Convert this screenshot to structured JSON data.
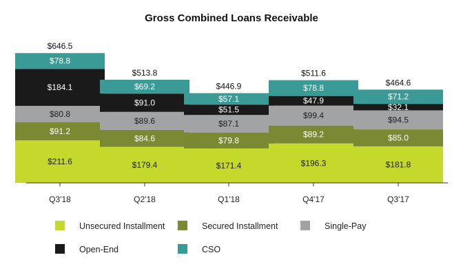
{
  "chart_data": {
    "type": "bar",
    "stacked": true,
    "title": "Gross Combined Loans Receivable",
    "xlabel": "",
    "ylabel": "",
    "categories": [
      "Q3'18",
      "Q2'18",
      "Q1'18",
      "Q4'17",
      "Q3'17"
    ],
    "ylim": [
      0,
      700
    ],
    "grid": false,
    "legend_position": "bottom",
    "series": [
      {
        "name": "Unsecured Installment",
        "color": "#c5d92d",
        "label_color": "#222222",
        "values": [
          211.6,
          179.4,
          171.4,
          196.3,
          181.8
        ],
        "labels": [
          "$211.6",
          "$179.4",
          "$171.4",
          "$196.3",
          "$181.8"
        ]
      },
      {
        "name": "Secured Installment",
        "color": "#7b8a32",
        "label_color": "#ffffff",
        "values": [
          91.2,
          84.6,
          79.8,
          89.2,
          85.0
        ],
        "labels": [
          "$91.2",
          "$84.6",
          "$79.8",
          "$89.2",
          "$85.0"
        ]
      },
      {
        "name": "Single-Pay",
        "color": "#a1a3a5",
        "label_color": "#222222",
        "values": [
          80.8,
          89.6,
          87.1,
          99.4,
          94.5
        ],
        "labels": [
          "$80.8",
          "$89.6",
          "$87.1",
          "$99.4",
          "$94.5"
        ]
      },
      {
        "name": "Open-End",
        "color": "#1a1a1a",
        "label_color": "#ffffff",
        "values": [
          184.1,
          91.0,
          51.5,
          47.9,
          32.1
        ],
        "labels": [
          "$184.1",
          "$91.0",
          "$51.5",
          "$47.9",
          "$32.1"
        ]
      },
      {
        "name": "CSO",
        "color": "#3a9b96",
        "label_color": "#ffffff",
        "values": [
          78.8,
          69.2,
          57.1,
          78.8,
          71.2
        ],
        "labels": [
          "$78.8",
          "$69.2",
          "$57.1",
          "$78.8",
          "$71.2"
        ]
      }
    ],
    "totals": [
      "$646.5",
      "$513.8",
      "$446.9",
      "$511.6",
      "$464.6"
    ]
  }
}
